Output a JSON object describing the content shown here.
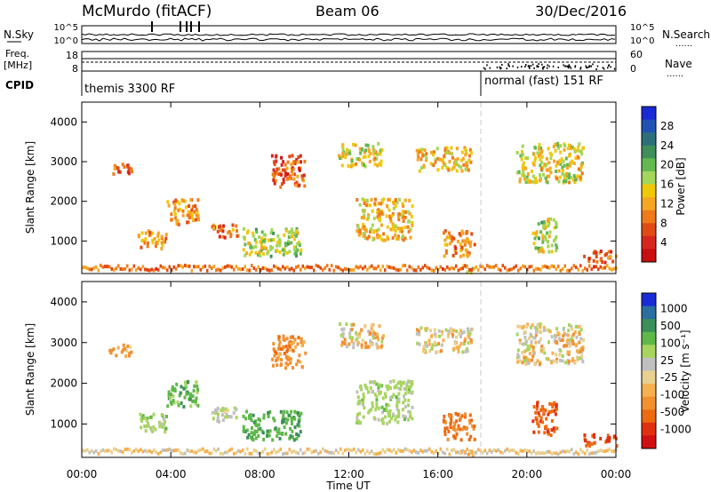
{
  "header": {
    "station": "McMurdo (fitACF)",
    "beam": "Beam 06",
    "date": "30/Dec/2016"
  },
  "status_panel": {
    "left_labels": {
      "nsky": "N.Sky",
      "freq_line1": "Freq.",
      "freq_line2": "[MHz]",
      "cpid": "CPID"
    },
    "right_labels": {
      "nsearch": "N.Search",
      "nave": "Nave",
      "dots": "......"
    },
    "noise_ticks": [
      "10^5",
      "10^0"
    ],
    "freq_ticks": [
      "18",
      "8"
    ],
    "nave_ticks": [
      "60",
      "0"
    ],
    "cpid_modes": [
      "themis 3300 RF",
      "normal (fast) 151 RF"
    ]
  },
  "chart_data": [
    {
      "type": "heatmap",
      "title": "",
      "xlabel": "Time UT",
      "ylabel": "Slant Range [km]",
      "x_ticks": [
        "00:00",
        "04:00",
        "08:00",
        "12:00",
        "16:00",
        "20:00",
        "00:00"
      ],
      "x_tick_values_hours": [
        0,
        4,
        8,
        12,
        16,
        20,
        24
      ],
      "xlim_hours": [
        0,
        24
      ],
      "y_ticks": [
        1000,
        2000,
        3000,
        4000
      ],
      "ylim": [
        180,
        4500
      ],
      "colorbar": {
        "label": "Power [dB]",
        "ticks": [
          "4",
          "8",
          "12",
          "16",
          "20",
          "24",
          "28"
        ],
        "colors": [
          "#1a2bd6",
          "#1f52b3",
          "#2c6f7b",
          "#3f8f5b",
          "#63b84f",
          "#a3d65a",
          "#f0c80a",
          "#f5a623",
          "#f07a1a",
          "#e24a14",
          "#d7261e",
          "#c80e10"
        ]
      },
      "mode_change_hours": 18.1,
      "regions": [
        {
          "t": [
            1.2,
            2.2
          ],
          "r": [
            2700,
            3000
          ],
          "v": 6
        },
        {
          "t": [
            2.5,
            3.8
          ],
          "r": [
            850,
            1300
          ],
          "v": 10
        },
        {
          "t": [
            3.8,
            5.2
          ],
          "r": [
            1450,
            2100
          ],
          "v": 9
        },
        {
          "t": [
            5.8,
            7.0
          ],
          "r": [
            1100,
            1450
          ],
          "v": 8
        },
        {
          "t": [
            7.2,
            9.8
          ],
          "r": [
            650,
            1350
          ],
          "v": 16
        },
        {
          "t": [
            8.5,
            10.0
          ],
          "r": [
            2400,
            3200
          ],
          "v": 6
        },
        {
          "t": [
            11.5,
            13.5
          ],
          "r": [
            2900,
            3500
          ],
          "v": 14
        },
        {
          "t": [
            12.3,
            14.8
          ],
          "r": [
            1050,
            2100
          ],
          "v": 12
        },
        {
          "t": [
            15.0,
            17.5
          ],
          "r": [
            2800,
            3400
          ],
          "v": 12
        },
        {
          "t": [
            16.2,
            17.6
          ],
          "r": [
            650,
            1300
          ],
          "v": 9
        },
        {
          "t": [
            17.0,
            17.6
          ],
          "r": [
            250,
            420
          ],
          "v": 18
        },
        {
          "t": [
            19.5,
            22.5
          ],
          "r": [
            2500,
            3500
          ],
          "v": 14
        },
        {
          "t": [
            20.2,
            21.3
          ],
          "r": [
            750,
            1600
          ],
          "v": 16
        },
        {
          "t": [
            22.5,
            24.0
          ],
          "r": [
            500,
            800
          ],
          "v": 6
        }
      ]
    },
    {
      "type": "heatmap",
      "title": "",
      "xlabel": "Time UT",
      "ylabel": "Slant Range [km]",
      "x_ticks": [
        "00:00",
        "04:00",
        "08:00",
        "12:00",
        "16:00",
        "20:00",
        "00:00"
      ],
      "x_tick_values_hours": [
        0,
        4,
        8,
        12,
        16,
        20,
        24
      ],
      "xlim_hours": [
        0,
        24
      ],
      "y_ticks": [
        1000,
        2000,
        3000,
        4000
      ],
      "ylim": [
        180,
        4500
      ],
      "colorbar": {
        "label": "Velocity [m s⁻¹]",
        "ticks": [
          "1000",
          "500",
          "100",
          "25",
          "-25",
          "-100",
          "-500",
          "-1000"
        ],
        "colors": [
          "#1a2bd6",
          "#2a6fa0",
          "#3b8f5a",
          "#5fb84a",
          "#a8d460",
          "#c0c0c0",
          "#e8d090",
          "#f5b050",
          "#f29030",
          "#ee6a10",
          "#e03010",
          "#d01010"
        ]
      },
      "mode_change_hours": 18.1,
      "regions": [
        {
          "t": [
            1.2,
            2.2
          ],
          "r": [
            2700,
            3000
          ],
          "v": -150
        },
        {
          "t": [
            2.5,
            3.8
          ],
          "r": [
            850,
            1300
          ],
          "v": 200
        },
        {
          "t": [
            3.8,
            5.2
          ],
          "r": [
            1450,
            2100
          ],
          "v": 400
        },
        {
          "t": [
            5.8,
            7.0
          ],
          "r": [
            1100,
            1450
          ],
          "v": 150
        },
        {
          "t": [
            7.2,
            9.8
          ],
          "r": [
            650,
            1350
          ],
          "v": 450
        },
        {
          "t": [
            8.5,
            10.0
          ],
          "r": [
            2400,
            3200
          ],
          "v": -200
        },
        {
          "t": [
            11.5,
            13.5
          ],
          "r": [
            2900,
            3500
          ],
          "v": 0
        },
        {
          "t": [
            12.3,
            14.8
          ],
          "r": [
            1050,
            2100
          ],
          "v": 180
        },
        {
          "t": [
            15.0,
            17.5
          ],
          "r": [
            2800,
            3400
          ],
          "v": 10
        },
        {
          "t": [
            16.2,
            17.6
          ],
          "r": [
            650,
            1300
          ],
          "v": -350
        },
        {
          "t": [
            17.0,
            17.6
          ],
          "r": [
            250,
            420
          ],
          "v": -80
        },
        {
          "t": [
            19.5,
            22.5
          ],
          "r": [
            2500,
            3500
          ],
          "v": 0
        },
        {
          "t": [
            20.2,
            21.3
          ],
          "r": [
            750,
            1600
          ],
          "v": -450
        },
        {
          "t": [
            22.5,
            24.0
          ],
          "r": [
            500,
            800
          ],
          "v": -500
        }
      ]
    }
  ]
}
